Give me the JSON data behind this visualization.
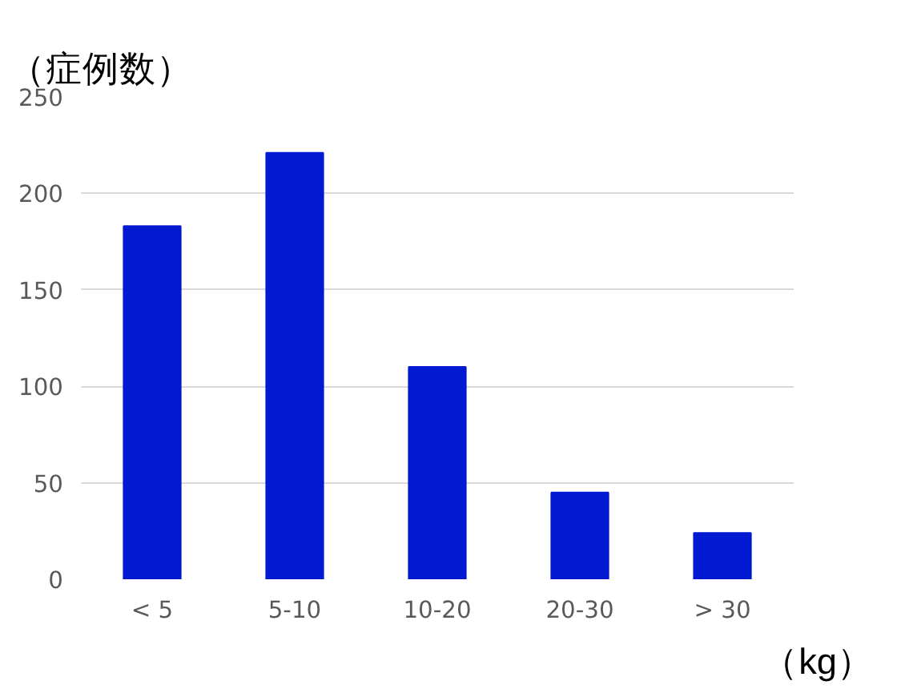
{
  "chart_data": {
    "type": "bar",
    "ylabel": "（症例数）",
    "xlabel": "（kg）",
    "categories": [
      "< 5",
      "5-10",
      "10-20",
      "20-30",
      "> 30"
    ],
    "values": [
      183,
      221,
      110,
      45,
      24
    ],
    "color": "#0019d1",
    "ylim": [
      0,
      250
    ],
    "yticks": [
      0,
      50,
      100,
      150,
      200,
      250
    ],
    "grid": "y"
  }
}
